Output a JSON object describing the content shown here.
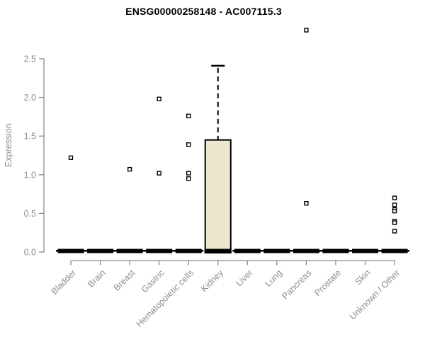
{
  "chart_data": {
    "type": "boxplot",
    "title": "ENSG00000258148 - AC007115.3",
    "ylabel": "Expression",
    "xlabel": "",
    "ylim": [
      0,
      2.5
    ],
    "yticks": [
      "0.0",
      "0.5",
      "1.0",
      "1.5",
      "2.0",
      "2.5"
    ],
    "grid": false,
    "legend": "none",
    "categories": [
      "Bladder",
      "Brain",
      "Breast",
      "Gastric",
      "Hematopoietic cells",
      "Kidney",
      "Liver",
      "Lung",
      "Pancreas",
      "Prostate",
      "Skin",
      "Unknown / Other"
    ],
    "boxes": [
      {
        "category": "Bladder",
        "q1": 0,
        "median": 0,
        "q3": 0,
        "whisker_low": 0,
        "whisker_high": 0,
        "outliers": [
          1.22
        ]
      },
      {
        "category": "Brain",
        "q1": 0,
        "median": 0,
        "q3": 0,
        "whisker_low": 0,
        "whisker_high": 0,
        "outliers": []
      },
      {
        "category": "Breast",
        "q1": 0,
        "median": 0,
        "q3": 0,
        "whisker_low": 0,
        "whisker_high": 0,
        "outliers": [
          1.07
        ]
      },
      {
        "category": "Gastric",
        "q1": 0,
        "median": 0,
        "q3": 0,
        "whisker_low": 0,
        "whisker_high": 0,
        "outliers": [
          1.98,
          1.02
        ]
      },
      {
        "category": "Hematopoietic cells",
        "q1": 0,
        "median": 0,
        "q3": 0,
        "whisker_low": 0,
        "whisker_high": 0,
        "outliers": [
          1.76,
          1.39,
          1.02,
          0.95
        ]
      },
      {
        "category": "Kidney",
        "q1": 0,
        "median": 0.02,
        "q3": 1.45,
        "whisker_low": 0,
        "whisker_high": 2.41,
        "outliers": []
      },
      {
        "category": "Liver",
        "q1": 0,
        "median": 0,
        "q3": 0,
        "whisker_low": 0,
        "whisker_high": 0,
        "outliers": []
      },
      {
        "category": "Lung",
        "q1": 0,
        "median": 0,
        "q3": 0,
        "whisker_low": 0,
        "whisker_high": 0,
        "outliers": []
      },
      {
        "category": "Pancreas",
        "q1": 0,
        "median": 0,
        "q3": 0,
        "whisker_low": 0,
        "whisker_high": 0,
        "outliers": [
          2.87,
          0.63
        ]
      },
      {
        "category": "Prostate",
        "q1": 0,
        "median": 0,
        "q3": 0,
        "whisker_low": 0,
        "whisker_high": 0,
        "outliers": []
      },
      {
        "category": "Skin",
        "q1": 0,
        "median": 0,
        "q3": 0,
        "whisker_low": 0,
        "whisker_high": 0,
        "outliers": []
      },
      {
        "category": "Unknown / Other",
        "q1": 0,
        "median": 0,
        "q3": 0,
        "whisker_low": 0,
        "whisker_high": 0,
        "outliers": [
          0.7,
          0.61,
          0.55,
          0.53,
          0.4,
          0.38,
          0.27
        ]
      }
    ],
    "colors": {
      "box_fill": "#ECE7CD",
      "box_stroke": "#000000",
      "axis": "#8a8a8a",
      "tick_label": "#8d8d8d",
      "title": "#000000",
      "outlier_fill": "#ffffff",
      "outlier_stroke": "#000000"
    }
  }
}
